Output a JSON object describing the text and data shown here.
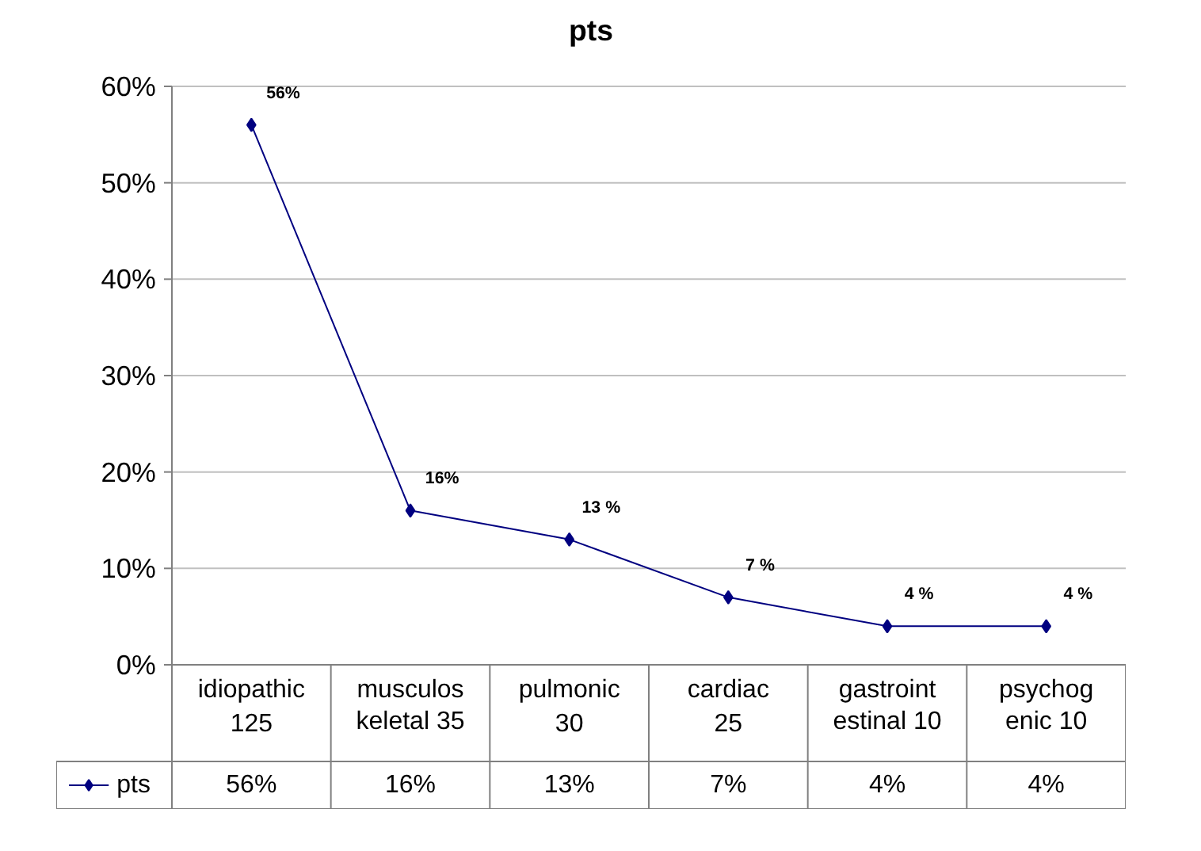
{
  "chart_data": {
    "type": "line",
    "title": "pts",
    "categories": [
      "idiopathic\n125",
      "musculos\nkeletal 35",
      "pulmonic\n30",
      "cardiac\n25",
      "gastroint\nestinal 10",
      "psychog\nenic 10"
    ],
    "series": [
      {
        "name": "pts",
        "color": "#000080",
        "values": [
          56,
          16,
          13,
          7,
          4,
          4
        ],
        "value_labels": [
          "56%",
          "16%",
          "13%",
          "7%",
          "4%",
          "4%"
        ]
      }
    ],
    "annotations": [
      {
        "text": "56%",
        "x": "idiopathic\n125",
        "y": 56
      },
      {
        "text": "16%",
        "x": "musculos\nkeletal 35",
        "y": 16
      },
      {
        "text": "13 %",
        "x": "pulmonic\n30",
        "y": 13
      },
      {
        "text": "7 %",
        "x": "cardiac\n25",
        "y": 7
      },
      {
        "text": "4 %",
        "x": "gastroint\nestinal 10",
        "y": 4
      },
      {
        "text": "4 %",
        "x": "psychog\nenic 10",
        "y": 4
      }
    ],
    "ylim": [
      0,
      60
    ],
    "yticks": [
      {
        "value": 0,
        "label": "0%"
      },
      {
        "value": 10,
        "label": "10%"
      },
      {
        "value": 20,
        "label": "20%"
      },
      {
        "value": 30,
        "label": "30%"
      },
      {
        "value": 40,
        "label": "40%"
      },
      {
        "value": 50,
        "label": "50%"
      },
      {
        "value": 60,
        "label": "60%"
      }
    ],
    "grid": "y",
    "marker": "diamond",
    "line_style": "solid",
    "legend": "bottom left"
  }
}
